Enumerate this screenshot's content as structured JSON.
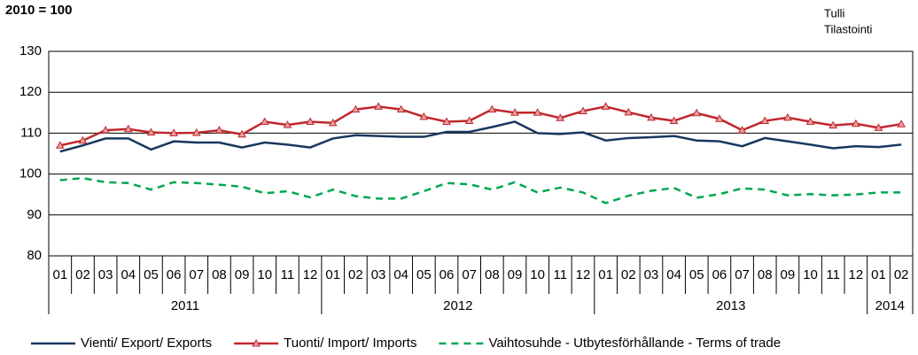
{
  "chart_data": {
    "type": "line",
    "subtitle": "2010 = 100",
    "source": [
      "Tulli",
      "Tilastointi"
    ],
    "categories": [
      "01",
      "02",
      "03",
      "04",
      "05",
      "06",
      "07",
      "08",
      "09",
      "10",
      "11",
      "12",
      "01",
      "02",
      "03",
      "04",
      "05",
      "06",
      "07",
      "08",
      "09",
      "10",
      "11",
      "12",
      "01",
      "02",
      "03",
      "04",
      "05",
      "06",
      "07",
      "08",
      "09",
      "10",
      "11",
      "12",
      "01",
      "02"
    ],
    "years": [
      "2011",
      "2012",
      "2013",
      "2014"
    ],
    "ylim": [
      80,
      130
    ],
    "yticks": [
      80,
      90,
      100,
      110,
      120,
      130
    ],
    "grid": true,
    "legend": "bottom",
    "series": [
      {
        "name": "Vienti/ Export/ Exports",
        "color": "#17375e",
        "style": "solid",
        "values": [
          105.5,
          107,
          108.7,
          108.7,
          106,
          108,
          107.7,
          107.7,
          106.5,
          107.7,
          107.2,
          106.5,
          108.7,
          109.5,
          109.3,
          109.1,
          109.1,
          110.3,
          110.3,
          111.5,
          112.8,
          110,
          109.8,
          110.2,
          108.2,
          108.8,
          109,
          109.3,
          108.2,
          108,
          106.8,
          108.8,
          108,
          107.2,
          106.3,
          106.8,
          106.6,
          107.2
        ]
      },
      {
        "name": "Tuonti/ Import/ Imports",
        "color": "#c0272d",
        "style": "solid",
        "marker": "triangle",
        "values": [
          107,
          108.2,
          110.7,
          111,
          110.2,
          110,
          110.1,
          110.7,
          109.7,
          112.8,
          112,
          112.8,
          112.5,
          115.8,
          116.5,
          115.8,
          114,
          112.8,
          113,
          115.8,
          115,
          115,
          113.7,
          115.4,
          116.5,
          115.1,
          113.8,
          113,
          114.9,
          113.5,
          110.7,
          113,
          113.8,
          112.8,
          111.9,
          112.3,
          111.3,
          112.2
        ]
      },
      {
        "name": "Vaihtosuhde - Utbytesförhållande - Terms of trade",
        "color": "#00a651",
        "style": "dashed",
        "values": [
          98.5,
          99,
          98,
          97.8,
          96.2,
          98,
          97.8,
          97.4,
          96.9,
          95.3,
          95.8,
          94.3,
          96.2,
          94.6,
          94,
          94,
          95.8,
          97.8,
          97.5,
          96.2,
          98,
          95.5,
          96.7,
          95.5,
          92.9,
          94.7,
          95.9,
          96.6,
          94.2,
          95.1,
          96.5,
          96.2,
          94.8,
          95.1,
          94.8,
          95,
          95.5,
          95.5
        ]
      }
    ]
  }
}
